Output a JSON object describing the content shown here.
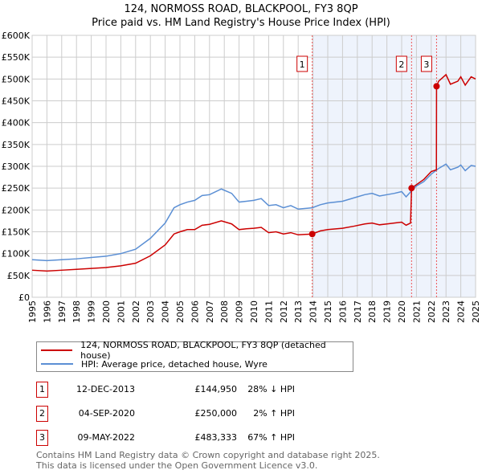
{
  "chart_data": {
    "type": "line",
    "title": "124, NORMOSS ROAD, BLACKPOOL, FY3 8QP",
    "subtitle": "Price paid vs. HM Land Registry's House Price Index (HPI)",
    "xlim": [
      1995,
      2025
    ],
    "ylim": [
      0,
      600000
    ],
    "x_ticks": [
      "1995",
      "1996",
      "1997",
      "1998",
      "1999",
      "2000",
      "2001",
      "2002",
      "2003",
      "2004",
      "2005",
      "2006",
      "2007",
      "2008",
      "2009",
      "2010",
      "2011",
      "2012",
      "2013",
      "2014",
      "2015",
      "2016",
      "2017",
      "2018",
      "2019",
      "2020",
      "2021",
      "2022",
      "2023",
      "2024",
      "2025"
    ],
    "y_ticks": [
      {
        "v": 0,
        "l": "£0"
      },
      {
        "v": 50000,
        "l": "£50K"
      },
      {
        "v": 100000,
        "l": "£100K"
      },
      {
        "v": 150000,
        "l": "£150K"
      },
      {
        "v": 200000,
        "l": "£200K"
      },
      {
        "v": 250000,
        "l": "£250K"
      },
      {
        "v": 300000,
        "l": "£300K"
      },
      {
        "v": 350000,
        "l": "£350K"
      },
      {
        "v": 400000,
        "l": "£400K"
      },
      {
        "v": 450000,
        "l": "£450K"
      },
      {
        "v": 500000,
        "l": "£500K"
      },
      {
        "v": 550000,
        "l": "£550K"
      },
      {
        "v": 600000,
        "l": "£600K"
      }
    ],
    "grid": true,
    "series": [
      {
        "name": "124, NORMOSS ROAD, BLACKPOOL, FY3 8QP (detached house)",
        "color": "#cc0000",
        "x": [
          1995,
          1996,
          1997,
          1998,
          1999,
          2000,
          2001,
          2002,
          2003,
          2004,
          2004.6,
          2005,
          2005.5,
          2006,
          2006.5,
          2007,
          2007.8,
          2008.5,
          2009,
          2009.5,
          2010,
          2010.5,
          2011,
          2011.5,
          2012,
          2012.5,
          2013,
          2013.95,
          2014.5,
          2015,
          2016,
          2016.8,
          2017.5,
          2018,
          2018.5,
          2019,
          2019.5,
          2020,
          2020.3,
          2020.6,
          2020.67,
          2021,
          2021.5,
          2022,
          2022.35,
          2022.36,
          2022.5,
          2023,
          2023.3,
          2023.8,
          2024,
          2024.3,
          2024.7,
          2025
        ],
        "y": [
          62,
          60,
          62,
          64,
          66,
          68,
          72,
          78,
          95,
          120,
          145,
          150,
          155,
          155,
          165,
          167,
          175,
          168,
          155,
          157,
          158,
          160,
          148,
          150,
          145,
          148,
          143,
          145,
          152,
          155,
          158,
          163,
          168,
          170,
          166,
          168,
          170,
          172,
          165,
          170,
          250,
          258,
          270,
          288,
          292,
          483,
          495,
          510,
          488,
          495,
          505,
          486,
          505,
          500
        ]
      },
      {
        "name": "HPI: Average price, detached house, Wyre",
        "color": "#5b8fd4",
        "x": [
          1995,
          1996,
          1997,
          1998,
          1999,
          2000,
          2001,
          2002,
          2003,
          2004,
          2004.6,
          2005,
          2005.5,
          2006,
          2006.5,
          2007,
          2007.8,
          2008.5,
          2009,
          2009.5,
          2010,
          2010.5,
          2011,
          2011.5,
          2012,
          2012.5,
          2013,
          2013.95,
          2014.5,
          2015,
          2016,
          2016.8,
          2017.5,
          2018,
          2018.5,
          2019,
          2019.5,
          2020,
          2020.3,
          2020.7,
          2021,
          2021.5,
          2022,
          2022.5,
          2023,
          2023.3,
          2023.8,
          2024,
          2024.3,
          2024.7,
          2025
        ],
        "y": [
          86,
          84,
          86,
          88,
          91,
          94,
          100,
          110,
          135,
          170,
          205,
          212,
          218,
          222,
          233,
          235,
          248,
          238,
          218,
          220,
          222,
          226,
          210,
          212,
          205,
          210,
          202,
          205,
          212,
          216,
          220,
          228,
          235,
          238,
          232,
          235,
          238,
          242,
          230,
          245,
          255,
          265,
          282,
          295,
          305,
          292,
          298,
          303,
          290,
          302,
          300
        ]
      }
    ],
    "y_units": "thousands GBP",
    "sales": [
      {
        "label": "1",
        "x": 2013.95,
        "y": 144.95,
        "date": "12-DEC-2013",
        "price": "£144,950",
        "hpi": "28% ↓ HPI"
      },
      {
        "label": "2",
        "x": 2020.67,
        "y": 250,
        "date": "04-SEP-2020",
        "price": "£250,000",
        "hpi": "2% ↑ HPI"
      },
      {
        "label": "3",
        "x": 2022.36,
        "y": 483.333,
        "date": "09-MAY-2022",
        "price": "£483,333",
        "hpi": "67% ↑ HPI"
      }
    ],
    "shaded_from": 2013.95,
    "legend_position": "below"
  },
  "footer": [
    "Contains HM Land Registry data © Crown copyright and database right 2025.",
    "This data is licensed under the Open Government Licence v3.0."
  ]
}
